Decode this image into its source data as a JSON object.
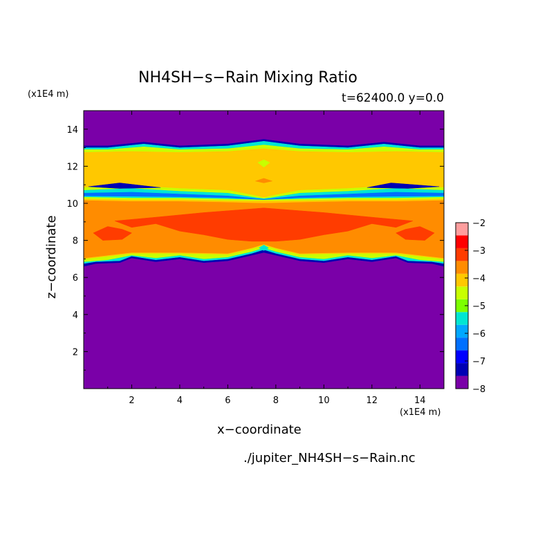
{
  "chart_data": {
    "type": "heatmap",
    "title": "NH4SH−s−Rain Mixing Ratio",
    "subtitle": "t=62400.0 y=0.0",
    "xlabel": "x−coordinate",
    "ylabel": "z−coordinate",
    "x_unit_label": "(x1E4 m)",
    "y_unit_label": "(x1E4 m)",
    "source_label": "./jupiter_NH4SH−s−Rain.nc",
    "xlim": [
      0,
      15
    ],
    "ylim": [
      0,
      15
    ],
    "x_ticks": [
      2,
      4,
      6,
      8,
      10,
      12,
      14
    ],
    "y_ticks": [
      2,
      4,
      6,
      8,
      10,
      12,
      14
    ],
    "colorbar": {
      "levels": [
        -8,
        -7.5,
        -7,
        -6.5,
        -6,
        -5.5,
        -5,
        -4.5,
        -4,
        -3.5,
        -3,
        -2.5,
        -2
      ],
      "colors": [
        "#7a00a8",
        "#0000b4",
        "#0000ff",
        "#0070ff",
        "#00a8ff",
        "#00e6d2",
        "#7cff00",
        "#c8ff00",
        "#ffc800",
        "#ff8c00",
        "#ff3c00",
        "#ff0000",
        "#ff9e9e"
      ],
      "tick_labels": [
        "-2",
        "-3",
        "-4",
        "-5",
        "-6",
        "-7",
        "-8"
      ]
    },
    "layers": [
      {
        "level": -7.5,
        "color": "#0000b4",
        "top_edge": [
          [
            0,
            13.1
          ],
          [
            1,
            13.1
          ],
          [
            2.5,
            13.3
          ],
          [
            4,
            13.1
          ],
          [
            6,
            13.2
          ],
          [
            7.5,
            13.45
          ],
          [
            9,
            13.2
          ],
          [
            11,
            13.1
          ],
          [
            12.5,
            13.3
          ],
          [
            14,
            13.1
          ],
          [
            15,
            13.1
          ]
        ],
        "bottom_edge": [
          [
            0,
            6.6
          ],
          [
            0.5,
            6.75
          ],
          [
            1.5,
            6.8
          ],
          [
            2,
            7.05
          ],
          [
            3,
            6.85
          ],
          [
            4,
            7.0
          ],
          [
            5,
            6.8
          ],
          [
            6,
            6.9
          ],
          [
            7,
            7.2
          ],
          [
            7.5,
            7.35
          ],
          [
            8,
            7.2
          ],
          [
            9,
            6.9
          ],
          [
            10,
            6.8
          ],
          [
            11,
            7.0
          ],
          [
            12,
            6.85
          ],
          [
            13,
            7.05
          ],
          [
            13.5,
            6.8
          ],
          [
            14.5,
            6.75
          ],
          [
            15,
            6.6
          ]
        ]
      },
      {
        "level": -5.5,
        "color": "#00e6d2",
        "top_edge": [
          [
            0,
            13.0
          ],
          [
            1,
            13.0
          ],
          [
            2.5,
            13.2
          ],
          [
            4,
            13.0
          ],
          [
            6,
            13.1
          ],
          [
            7.5,
            13.35
          ],
          [
            9,
            13.1
          ],
          [
            11,
            13.0
          ],
          [
            12.5,
            13.2
          ],
          [
            14,
            13.0
          ],
          [
            15,
            13.0
          ]
        ],
        "bottom_edge": [
          [
            0,
            6.75
          ],
          [
            0.5,
            6.85
          ],
          [
            1.5,
            6.9
          ],
          [
            2,
            7.15
          ],
          [
            3,
            6.95
          ],
          [
            4,
            7.1
          ],
          [
            5,
            6.9
          ],
          [
            6,
            7.0
          ],
          [
            7,
            7.3
          ],
          [
            7.5,
            7.5
          ],
          [
            8,
            7.3
          ],
          [
            9,
            7.0
          ],
          [
            10,
            6.9
          ],
          [
            11,
            7.1
          ],
          [
            12,
            6.95
          ],
          [
            13,
            7.15
          ],
          [
            13.5,
            6.9
          ],
          [
            14.5,
            6.85
          ],
          [
            15,
            6.75
          ]
        ]
      },
      {
        "level": -4.5,
        "color": "#c8ff00",
        "top_edge": [
          [
            0,
            12.9
          ],
          [
            1,
            12.9
          ],
          [
            2.5,
            13.05
          ],
          [
            4,
            12.9
          ],
          [
            6,
            12.95
          ],
          [
            7.5,
            13.15
          ],
          [
            9,
            12.95
          ],
          [
            11,
            12.9
          ],
          [
            12.5,
            13.05
          ],
          [
            14,
            12.9
          ],
          [
            15,
            12.9
          ]
        ],
        "bottom_edge": [
          [
            0,
            6.85
          ],
          [
            1,
            6.95
          ],
          [
            2,
            7.2
          ],
          [
            3,
            7.05
          ],
          [
            4,
            7.2
          ],
          [
            5,
            7.0
          ],
          [
            6,
            7.1
          ],
          [
            7,
            7.4
          ],
          [
            7.5,
            7.6
          ],
          [
            8,
            7.4
          ],
          [
            9,
            7.1
          ],
          [
            10,
            7.0
          ],
          [
            11,
            7.2
          ],
          [
            12,
            7.05
          ],
          [
            13,
            7.2
          ],
          [
            14,
            6.95
          ],
          [
            15,
            6.85
          ]
        ]
      },
      {
        "level": -4.0,
        "color": "#ffc800",
        "top_edge": [
          [
            0,
            12.75
          ],
          [
            2,
            12.8
          ],
          [
            4,
            12.75
          ],
          [
            6,
            12.8
          ],
          [
            7.5,
            12.95
          ],
          [
            9,
            12.8
          ],
          [
            11,
            12.75
          ],
          [
            13,
            12.8
          ],
          [
            15,
            12.75
          ]
        ],
        "bottom_edge": [
          [
            0,
            7.0
          ],
          [
            2,
            7.3
          ],
          [
            4,
            7.3
          ],
          [
            6,
            7.25
          ],
          [
            7,
            7.55
          ],
          [
            7.5,
            7.75
          ],
          [
            8,
            7.55
          ],
          [
            9,
            7.25
          ],
          [
            11,
            7.3
          ],
          [
            13,
            7.3
          ],
          [
            15,
            7.0
          ]
        ]
      },
      {
        "level": -3.5,
        "color": "#ff8c00",
        "top_edge": [
          [
            0,
            10.15
          ],
          [
            2,
            10.1
          ],
          [
            4,
            10.1
          ],
          [
            6,
            10.05
          ],
          [
            7.5,
            10.0
          ],
          [
            9,
            10.05
          ],
          [
            11,
            10.1
          ],
          [
            13,
            10.1
          ],
          [
            15,
            10.15
          ]
        ],
        "bottom_edge": [
          [
            0,
            7.05
          ],
          [
            2,
            7.35
          ],
          [
            4,
            7.35
          ],
          [
            6,
            7.3
          ],
          [
            7,
            7.6
          ],
          [
            7.5,
            7.8
          ],
          [
            8,
            7.6
          ],
          [
            9,
            7.3
          ],
          [
            11,
            7.35
          ],
          [
            13,
            7.35
          ],
          [
            15,
            7.05
          ]
        ]
      },
      {
        "level": -3.0,
        "color": "#ff3c00",
        "top_edge": [
          [
            1.3,
            9.05
          ],
          [
            3,
            9.25
          ],
          [
            5,
            9.5
          ],
          [
            7.5,
            9.75
          ],
          [
            10,
            9.5
          ],
          [
            12,
            9.25
          ],
          [
            13.7,
            9.05
          ]
        ],
        "bottom_edge": [
          [
            1.3,
            9.05
          ],
          [
            2,
            8.7
          ],
          [
            3,
            8.9
          ],
          [
            4,
            8.5
          ],
          [
            5,
            8.3
          ],
          [
            6,
            8.05
          ],
          [
            7,
            7.95
          ],
          [
            7.5,
            7.95
          ],
          [
            8,
            7.95
          ],
          [
            9,
            8.05
          ],
          [
            10,
            8.3
          ],
          [
            11,
            8.5
          ],
          [
            12,
            8.9
          ],
          [
            13,
            8.7
          ],
          [
            13.7,
            9.05
          ]
        ]
      },
      {
        "level": -3.0,
        "color": "#ff3c00",
        "top_edge": [
          [
            0.4,
            8.4
          ],
          [
            1.0,
            8.75
          ],
          [
            1.6,
            8.6
          ],
          [
            2.0,
            8.4
          ]
        ],
        "bottom_edge": [
          [
            0.4,
            8.4
          ],
          [
            0.8,
            8.0
          ],
          [
            1.6,
            8.05
          ],
          [
            2.0,
            8.4
          ]
        ]
      },
      {
        "level": -3.0,
        "color": "#ff3c00",
        "top_edge": [
          [
            13.0,
            8.4
          ],
          [
            13.4,
            8.6
          ],
          [
            14.0,
            8.75
          ],
          [
            14.6,
            8.4
          ]
        ],
        "bottom_edge": [
          [
            13.0,
            8.4
          ],
          [
            13.4,
            8.05
          ],
          [
            14.2,
            8.0
          ],
          [
            14.6,
            8.4
          ]
        ]
      },
      {
        "level": -3.5,
        "color": "#ff8c00",
        "top_edge": [
          [
            2.8,
            8.35
          ],
          [
            3.5,
            8.6
          ],
          [
            4.2,
            8.4
          ]
        ],
        "bottom_edge": [
          [
            2.8,
            8.35
          ],
          [
            3.5,
            8.05
          ],
          [
            4.2,
            8.4
          ]
        ]
      },
      {
        "level": -3.5,
        "color": "#ff8c00",
        "top_edge": [
          [
            10.8,
            8.4
          ],
          [
            11.5,
            8.6
          ],
          [
            12.2,
            8.35
          ]
        ],
        "bottom_edge": [
          [
            10.8,
            8.4
          ],
          [
            11.5,
            8.05
          ],
          [
            12.2,
            8.35
          ]
        ]
      },
      {
        "level": -4.5,
        "color": "#c8ff00",
        "top_edge": [
          [
            0,
            10.85
          ],
          [
            2,
            10.95
          ],
          [
            4,
            10.8
          ],
          [
            6,
            10.7
          ],
          [
            7.2,
            10.4
          ],
          [
            7.5,
            10.3
          ],
          [
            7.8,
            10.4
          ],
          [
            9,
            10.7
          ],
          [
            11,
            10.8
          ],
          [
            13,
            10.95
          ],
          [
            15,
            10.85
          ]
        ],
        "bottom_edge": [
          [
            0,
            10.25
          ],
          [
            2,
            10.2
          ],
          [
            4,
            10.2
          ],
          [
            6,
            10.15
          ],
          [
            7.5,
            10.15
          ],
          [
            9,
            10.15
          ],
          [
            11,
            10.2
          ],
          [
            13,
            10.2
          ],
          [
            15,
            10.25
          ]
        ]
      },
      {
        "level": -5.5,
        "color": "#00e6d2",
        "top_edge": [
          [
            0,
            10.7
          ],
          [
            2,
            10.8
          ],
          [
            4,
            10.65
          ],
          [
            6,
            10.55
          ],
          [
            7.2,
            10.3
          ],
          [
            7.5,
            10.25
          ],
          [
            7.8,
            10.3
          ],
          [
            9,
            10.55
          ],
          [
            11,
            10.65
          ],
          [
            13,
            10.8
          ],
          [
            15,
            10.7
          ]
        ],
        "bottom_edge": [
          [
            0,
            10.35
          ],
          [
            2,
            10.3
          ],
          [
            4,
            10.3
          ],
          [
            6,
            10.25
          ],
          [
            7.5,
            10.2
          ],
          [
            9,
            10.25
          ],
          [
            11,
            10.3
          ],
          [
            13,
            10.3
          ],
          [
            15,
            10.35
          ]
        ]
      },
      {
        "level": -6.5,
        "color": "#0070ff",
        "top_edge": [
          [
            0,
            10.55
          ],
          [
            2,
            10.6
          ],
          [
            4,
            10.5
          ],
          [
            6,
            10.4
          ],
          [
            7.5,
            10.22
          ],
          [
            9,
            10.4
          ],
          [
            11,
            10.5
          ],
          [
            13,
            10.6
          ],
          [
            15,
            10.55
          ]
        ],
        "bottom_edge": [
          [
            0,
            10.4
          ],
          [
            2,
            10.38
          ],
          [
            4,
            10.35
          ],
          [
            6,
            10.3
          ],
          [
            7.5,
            10.2
          ],
          [
            9,
            10.3
          ],
          [
            11,
            10.35
          ],
          [
            13,
            10.38
          ],
          [
            15,
            10.4
          ]
        ]
      },
      {
        "level": -7.5,
        "color": "#0000b4",
        "top_edge": [
          [
            0.2,
            10.9
          ],
          [
            1.5,
            11.1
          ],
          [
            2.5,
            10.95
          ],
          [
            3.2,
            10.85
          ]
        ],
        "bottom_edge": [
          [
            0.2,
            10.9
          ],
          [
            1.5,
            10.8
          ],
          [
            3.2,
            10.85
          ]
        ]
      },
      {
        "level": -7.5,
        "color": "#0000b4",
        "top_edge": [
          [
            11.8,
            10.85
          ],
          [
            12.8,
            11.1
          ],
          [
            14.8,
            10.9
          ]
        ],
        "bottom_edge": [
          [
            11.8,
            10.85
          ],
          [
            13.5,
            10.8
          ],
          [
            14.8,
            10.9
          ]
        ]
      },
      {
        "level": -4.5,
        "color": "#c8ff00",
        "top_edge": [
          [
            7.25,
            12.2
          ],
          [
            7.5,
            12.35
          ],
          [
            7.75,
            12.2
          ]
        ],
        "bottom_edge": [
          [
            7.25,
            12.2
          ],
          [
            7.5,
            11.95
          ],
          [
            7.75,
            12.2
          ]
        ]
      },
      {
        "level": -3.5,
        "color": "#ff8c00",
        "top_edge": [
          [
            7.15,
            11.2
          ],
          [
            7.5,
            11.35
          ],
          [
            7.85,
            11.2
          ]
        ],
        "bottom_edge": [
          [
            7.15,
            11.2
          ],
          [
            7.5,
            11.1
          ],
          [
            7.85,
            11.2
          ]
        ]
      },
      {
        "level": -5.5,
        "color": "#00e6d2",
        "top_edge": [
          [
            7.3,
            7.6
          ],
          [
            7.5,
            7.75
          ],
          [
            7.7,
            7.6
          ]
        ],
        "bottom_edge": [
          [
            7.3,
            7.6
          ],
          [
            7.5,
            7.45
          ],
          [
            7.7,
            7.6
          ]
        ]
      }
    ]
  }
}
